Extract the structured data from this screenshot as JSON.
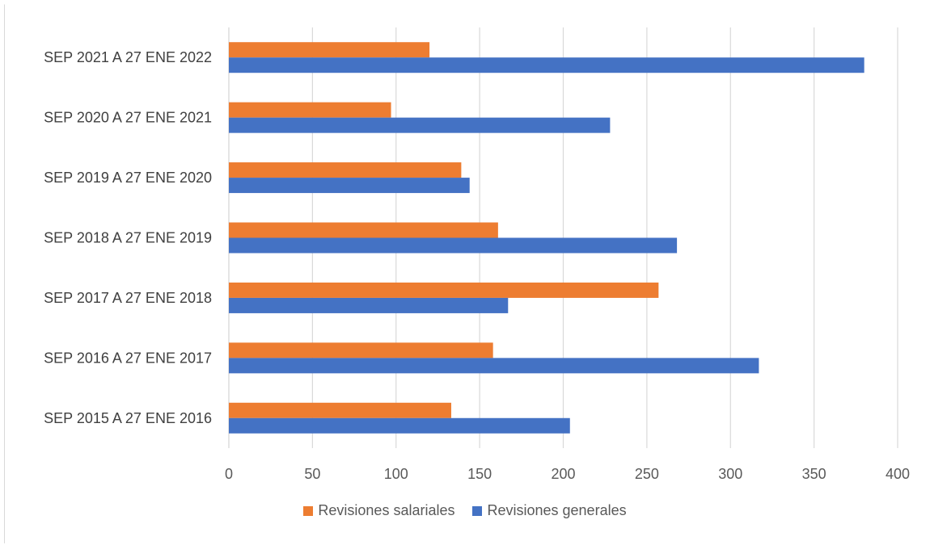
{
  "chart_data": {
    "type": "bar",
    "orientation": "horizontal",
    "categories": [
      "SEP 2015 A 27 ENE 2016",
      "SEP 2016 A 27 ENE 2017",
      "SEP 2017 A 27 ENE 2018",
      "SEP 2018 A 27 ENE 2019",
      "SEP 2019 A 27 ENE 2020",
      "SEP 2020 A 27 ENE 2021",
      "SEP 2021 A 27 ENE 2022"
    ],
    "series": [
      {
        "name": "Revisiones salariales",
        "color": "#ed7d31",
        "values": [
          133,
          158,
          257,
          161,
          139,
          97,
          120
        ]
      },
      {
        "name": "Revisiones generales",
        "color": "#4472c4",
        "values": [
          204,
          317,
          167,
          268,
          144,
          228,
          380
        ]
      }
    ],
    "xlim": [
      0,
      400
    ],
    "xticks": [
      0,
      50,
      100,
      150,
      200,
      250,
      300,
      350,
      400
    ],
    "grid": true,
    "legend_position": "bottom"
  }
}
